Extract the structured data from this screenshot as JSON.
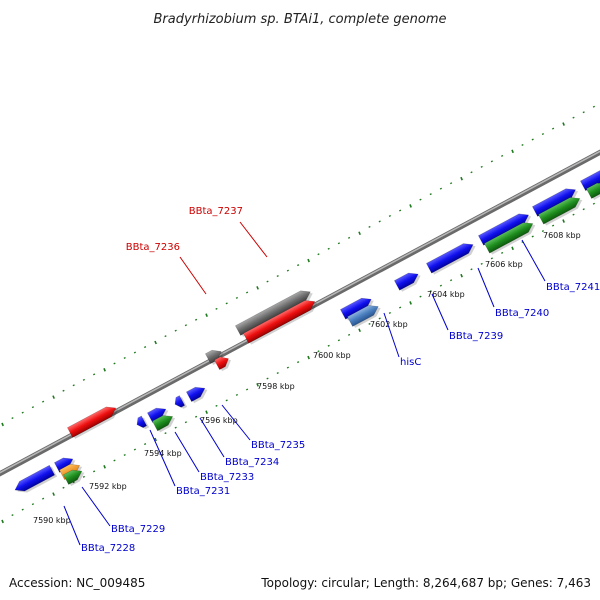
{
  "title": "Bradyrhizobium sp. BTAi1, complete genome",
  "footer": {
    "accession": "Accession: NC_009485",
    "summary": "Topology: circular; Length: 8,264,687 bp; Genes: 7,463"
  },
  "colors": {
    "backbone": "#8c8c8c",
    "ticks": "#1f7a1f",
    "label_blue": "#0000cc",
    "label_red": "#cc0000"
  },
  "ticks": [
    {
      "label": "7590 kbp"
    },
    {
      "label": "7592 kbp"
    },
    {
      "label": "7594 kbp"
    },
    {
      "label": "7596 kbp"
    },
    {
      "label": "7598 kbp"
    },
    {
      "label": "7600 kbp"
    },
    {
      "label": "7602 kbp"
    },
    {
      "label": "7604 kbp"
    },
    {
      "label": "7606 kbp"
    },
    {
      "label": "7608 kbp"
    }
  ],
  "gene_labels": [
    {
      "text": "BBta_7228",
      "color": "#0000cc"
    },
    {
      "text": "BBta_7229",
      "color": "#0000cc"
    },
    {
      "text": "BBta_7231",
      "color": "#0000cc"
    },
    {
      "text": "BBta_7233",
      "color": "#0000cc"
    },
    {
      "text": "BBta_7234",
      "color": "#0000cc"
    },
    {
      "text": "BBta_7235",
      "color": "#0000cc"
    },
    {
      "text": "hisC",
      "color": "#0000cc"
    },
    {
      "text": "BBta_7239",
      "color": "#0000cc"
    },
    {
      "text": "BBta_7240",
      "color": "#0000cc"
    },
    {
      "text": "BBta_7241",
      "color": "#0000cc"
    },
    {
      "text": "BBta_7236",
      "color": "#cc0000"
    },
    {
      "text": "BBta_7237",
      "color": "#cc0000"
    }
  ]
}
